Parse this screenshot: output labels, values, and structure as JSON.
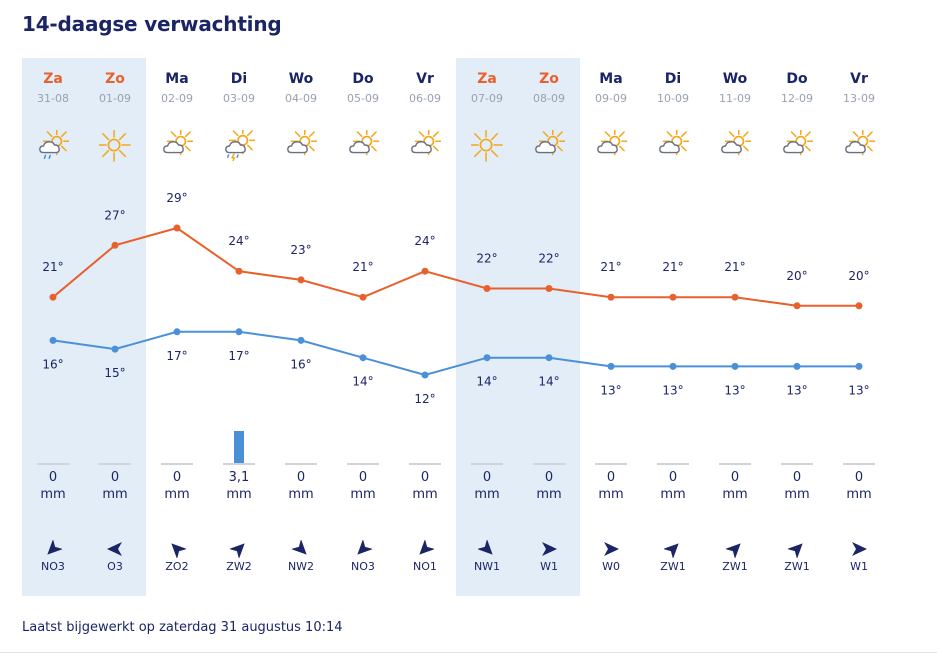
{
  "header": {
    "title": "14-daagse verwachting"
  },
  "footer": {
    "updated_text": "Laatst bijgewerkt op zaterdag 31 augustus 10:14"
  },
  "colors": {
    "max_line": "#e8612c",
    "min_line": "#4a90d9",
    "weekend_bg": "#e2edf8",
    "weekend_text": "#e8612c",
    "text": "#1b2566"
  },
  "rain_unit": "mm",
  "days": [
    {
      "name": "Za",
      "date": "31-08",
      "weekend": true,
      "icon": "cloud-sun-rain-icon",
      "max": 21,
      "min": 16,
      "max_label": "21°",
      "min_label": "16°",
      "rain": "0",
      "rain_mm": 0,
      "wind": "NO3",
      "wind_dir_deg": 225
    },
    {
      "name": "Zo",
      "date": "01-09",
      "weekend": true,
      "icon": "sun-icon",
      "max": 27,
      "min": 15,
      "max_label": "27°",
      "min_label": "15°",
      "rain": "0",
      "rain_mm": 0,
      "wind": "O3",
      "wind_dir_deg": 270
    },
    {
      "name": "Ma",
      "date": "02-09",
      "weekend": false,
      "icon": "partly-cloudy-icon",
      "max": 29,
      "min": 17,
      "max_label": "29°",
      "min_label": "17°",
      "rain": "0",
      "rain_mm": 0,
      "wind": "ZO2",
      "wind_dir_deg": 315
    },
    {
      "name": "Di",
      "date": "03-09",
      "weekend": false,
      "icon": "thunderstorm-icon",
      "max": 24,
      "min": 17,
      "max_label": "24°",
      "min_label": "17°",
      "rain": "3,1",
      "rain_mm": 3.1,
      "wind": "ZW2",
      "wind_dir_deg": 45
    },
    {
      "name": "Wo",
      "date": "04-09",
      "weekend": false,
      "icon": "partly-cloudy-icon",
      "max": 23,
      "min": 16,
      "max_label": "23°",
      "min_label": "16°",
      "rain": "0",
      "rain_mm": 0,
      "wind": "NW2",
      "wind_dir_deg": 135
    },
    {
      "name": "Do",
      "date": "05-09",
      "weekend": false,
      "icon": "partly-cloudy-icon",
      "max": 21,
      "min": 14,
      "max_label": "21°",
      "min_label": "14°",
      "rain": "0",
      "rain_mm": 0,
      "wind": "NO3",
      "wind_dir_deg": 225
    },
    {
      "name": "Vr",
      "date": "06-09",
      "weekend": false,
      "icon": "partly-cloudy-icon",
      "max": 24,
      "min": 12,
      "max_label": "24°",
      "min_label": "12°",
      "rain": "0",
      "rain_mm": 0,
      "wind": "NO1",
      "wind_dir_deg": 225
    },
    {
      "name": "Za",
      "date": "07-09",
      "weekend": true,
      "icon": "sun-icon",
      "max": 22,
      "min": 14,
      "max_label": "22°",
      "min_label": "14°",
      "rain": "0",
      "rain_mm": 0,
      "wind": "NW1",
      "wind_dir_deg": 135
    },
    {
      "name": "Zo",
      "date": "08-09",
      "weekend": true,
      "icon": "partly-cloudy-icon",
      "max": 22,
      "min": 14,
      "max_label": "22°",
      "min_label": "14°",
      "rain": "0",
      "rain_mm": 0,
      "wind": "W1",
      "wind_dir_deg": 90
    },
    {
      "name": "Ma",
      "date": "09-09",
      "weekend": false,
      "icon": "partly-cloudy-icon",
      "max": 21,
      "min": 13,
      "max_label": "21°",
      "min_label": "13°",
      "rain": "0",
      "rain_mm": 0,
      "wind": "W0",
      "wind_dir_deg": 90
    },
    {
      "name": "Di",
      "date": "10-09",
      "weekend": false,
      "icon": "partly-cloudy-icon",
      "max": 21,
      "min": 13,
      "max_label": "21°",
      "min_label": "13°",
      "rain": "0",
      "rain_mm": 0,
      "wind": "ZW1",
      "wind_dir_deg": 45
    },
    {
      "name": "Wo",
      "date": "11-09",
      "weekend": false,
      "icon": "partly-cloudy-icon",
      "max": 21,
      "min": 13,
      "max_label": "21°",
      "min_label": "13°",
      "rain": "0",
      "rain_mm": 0,
      "wind": "ZW1",
      "wind_dir_deg": 45
    },
    {
      "name": "Do",
      "date": "12-09",
      "weekend": false,
      "icon": "partly-cloudy-icon",
      "max": 20,
      "min": 13,
      "max_label": "20°",
      "min_label": "13°",
      "rain": "0",
      "rain_mm": 0,
      "wind": "ZW1",
      "wind_dir_deg": 45
    },
    {
      "name": "Vr",
      "date": "13-09",
      "weekend": false,
      "icon": "partly-cloudy-icon",
      "max": 20,
      "min": 13,
      "max_label": "20°",
      "min_label": "13°",
      "rain": "0",
      "rain_mm": 0,
      "wind": "W1",
      "wind_dir_deg": 90
    }
  ]
}
